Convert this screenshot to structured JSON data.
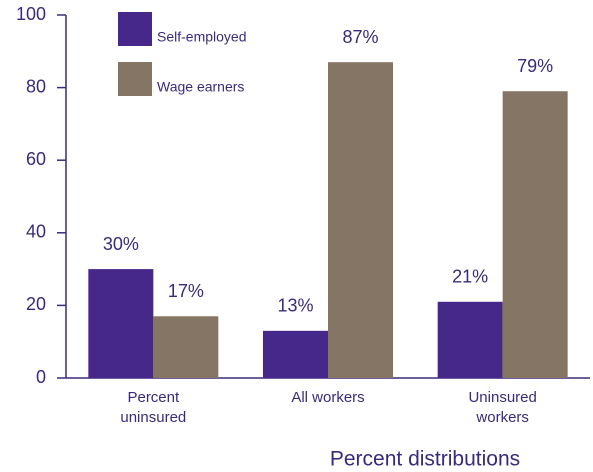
{
  "chart_data": {
    "type": "bar",
    "annotation": "Percent distributions",
    "categories": [
      "Percent\nuninsured",
      "All workers",
      "Uninsured\nworkers"
    ],
    "series": [
      {
        "name": "Self-employed",
        "color": "#46278a",
        "values": [
          30,
          13,
          21
        ],
        "value_labels": [
          "30%",
          "13%",
          "21%"
        ]
      },
      {
        "name": "Wage earners",
        "color": "#857564",
        "values": [
          17,
          87,
          79
        ],
        "value_labels": [
          "17%",
          "87%",
          "79%"
        ]
      }
    ],
    "ylim": [
      0,
      100
    ],
    "yticks": [
      0,
      20,
      40,
      60,
      80,
      100
    ],
    "grid": false,
    "legend": "top-left"
  }
}
